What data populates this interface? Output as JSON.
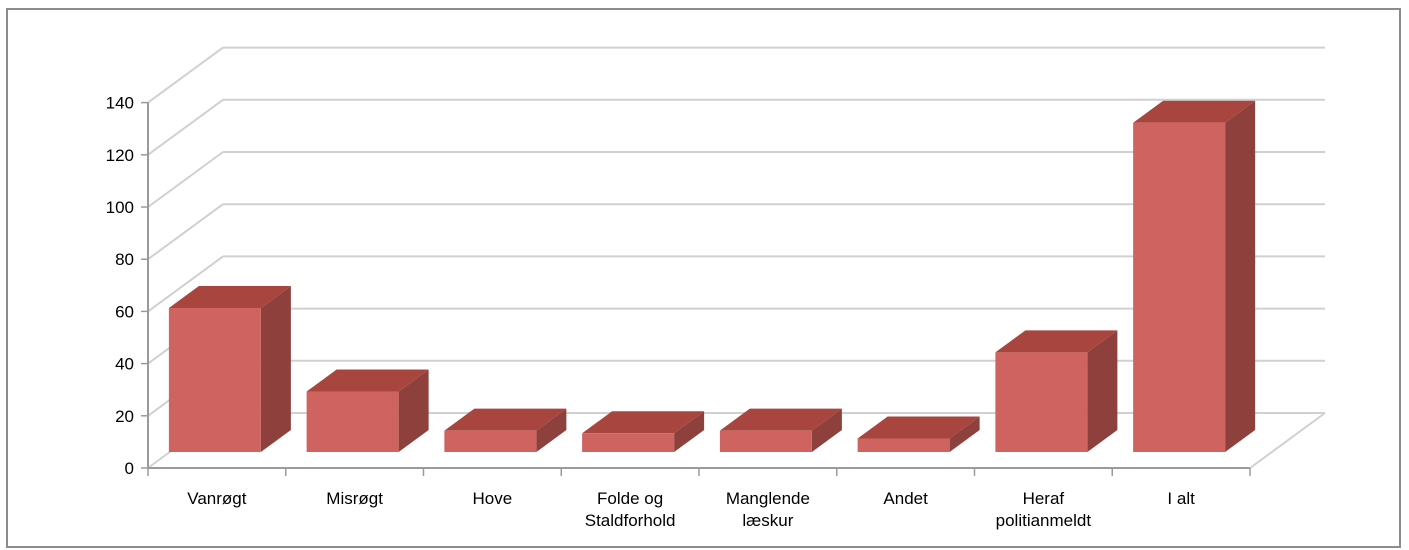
{
  "chart_data": {
    "type": "bar",
    "title": "",
    "xlabel": "",
    "ylabel": "",
    "categories": [
      [
        "Vanrøgt"
      ],
      [
        "Misrøgt"
      ],
      [
        "Hove"
      ],
      [
        "Folde og",
        "Staldforhold"
      ],
      [
        "Manglende",
        "læskur"
      ],
      [
        "Andet"
      ],
      [
        "Heraf",
        "politianmeldt"
      ],
      [
        "I alt"
      ]
    ],
    "values": [
      59,
      27,
      12,
      11,
      12,
      9,
      42,
      130
    ],
    "ylim": [
      0,
      140
    ],
    "yticks": [
      "0",
      "20",
      "40",
      "60",
      "80",
      "100",
      "120",
      "140"
    ],
    "grid": true,
    "legend": "none",
    "colors": {
      "bar_front": "#cf6360",
      "bar_top": "#a9453f",
      "bar_side": "#8e403c",
      "grid": "#d0d0d0",
      "axis": "#9a9a9a"
    }
  }
}
